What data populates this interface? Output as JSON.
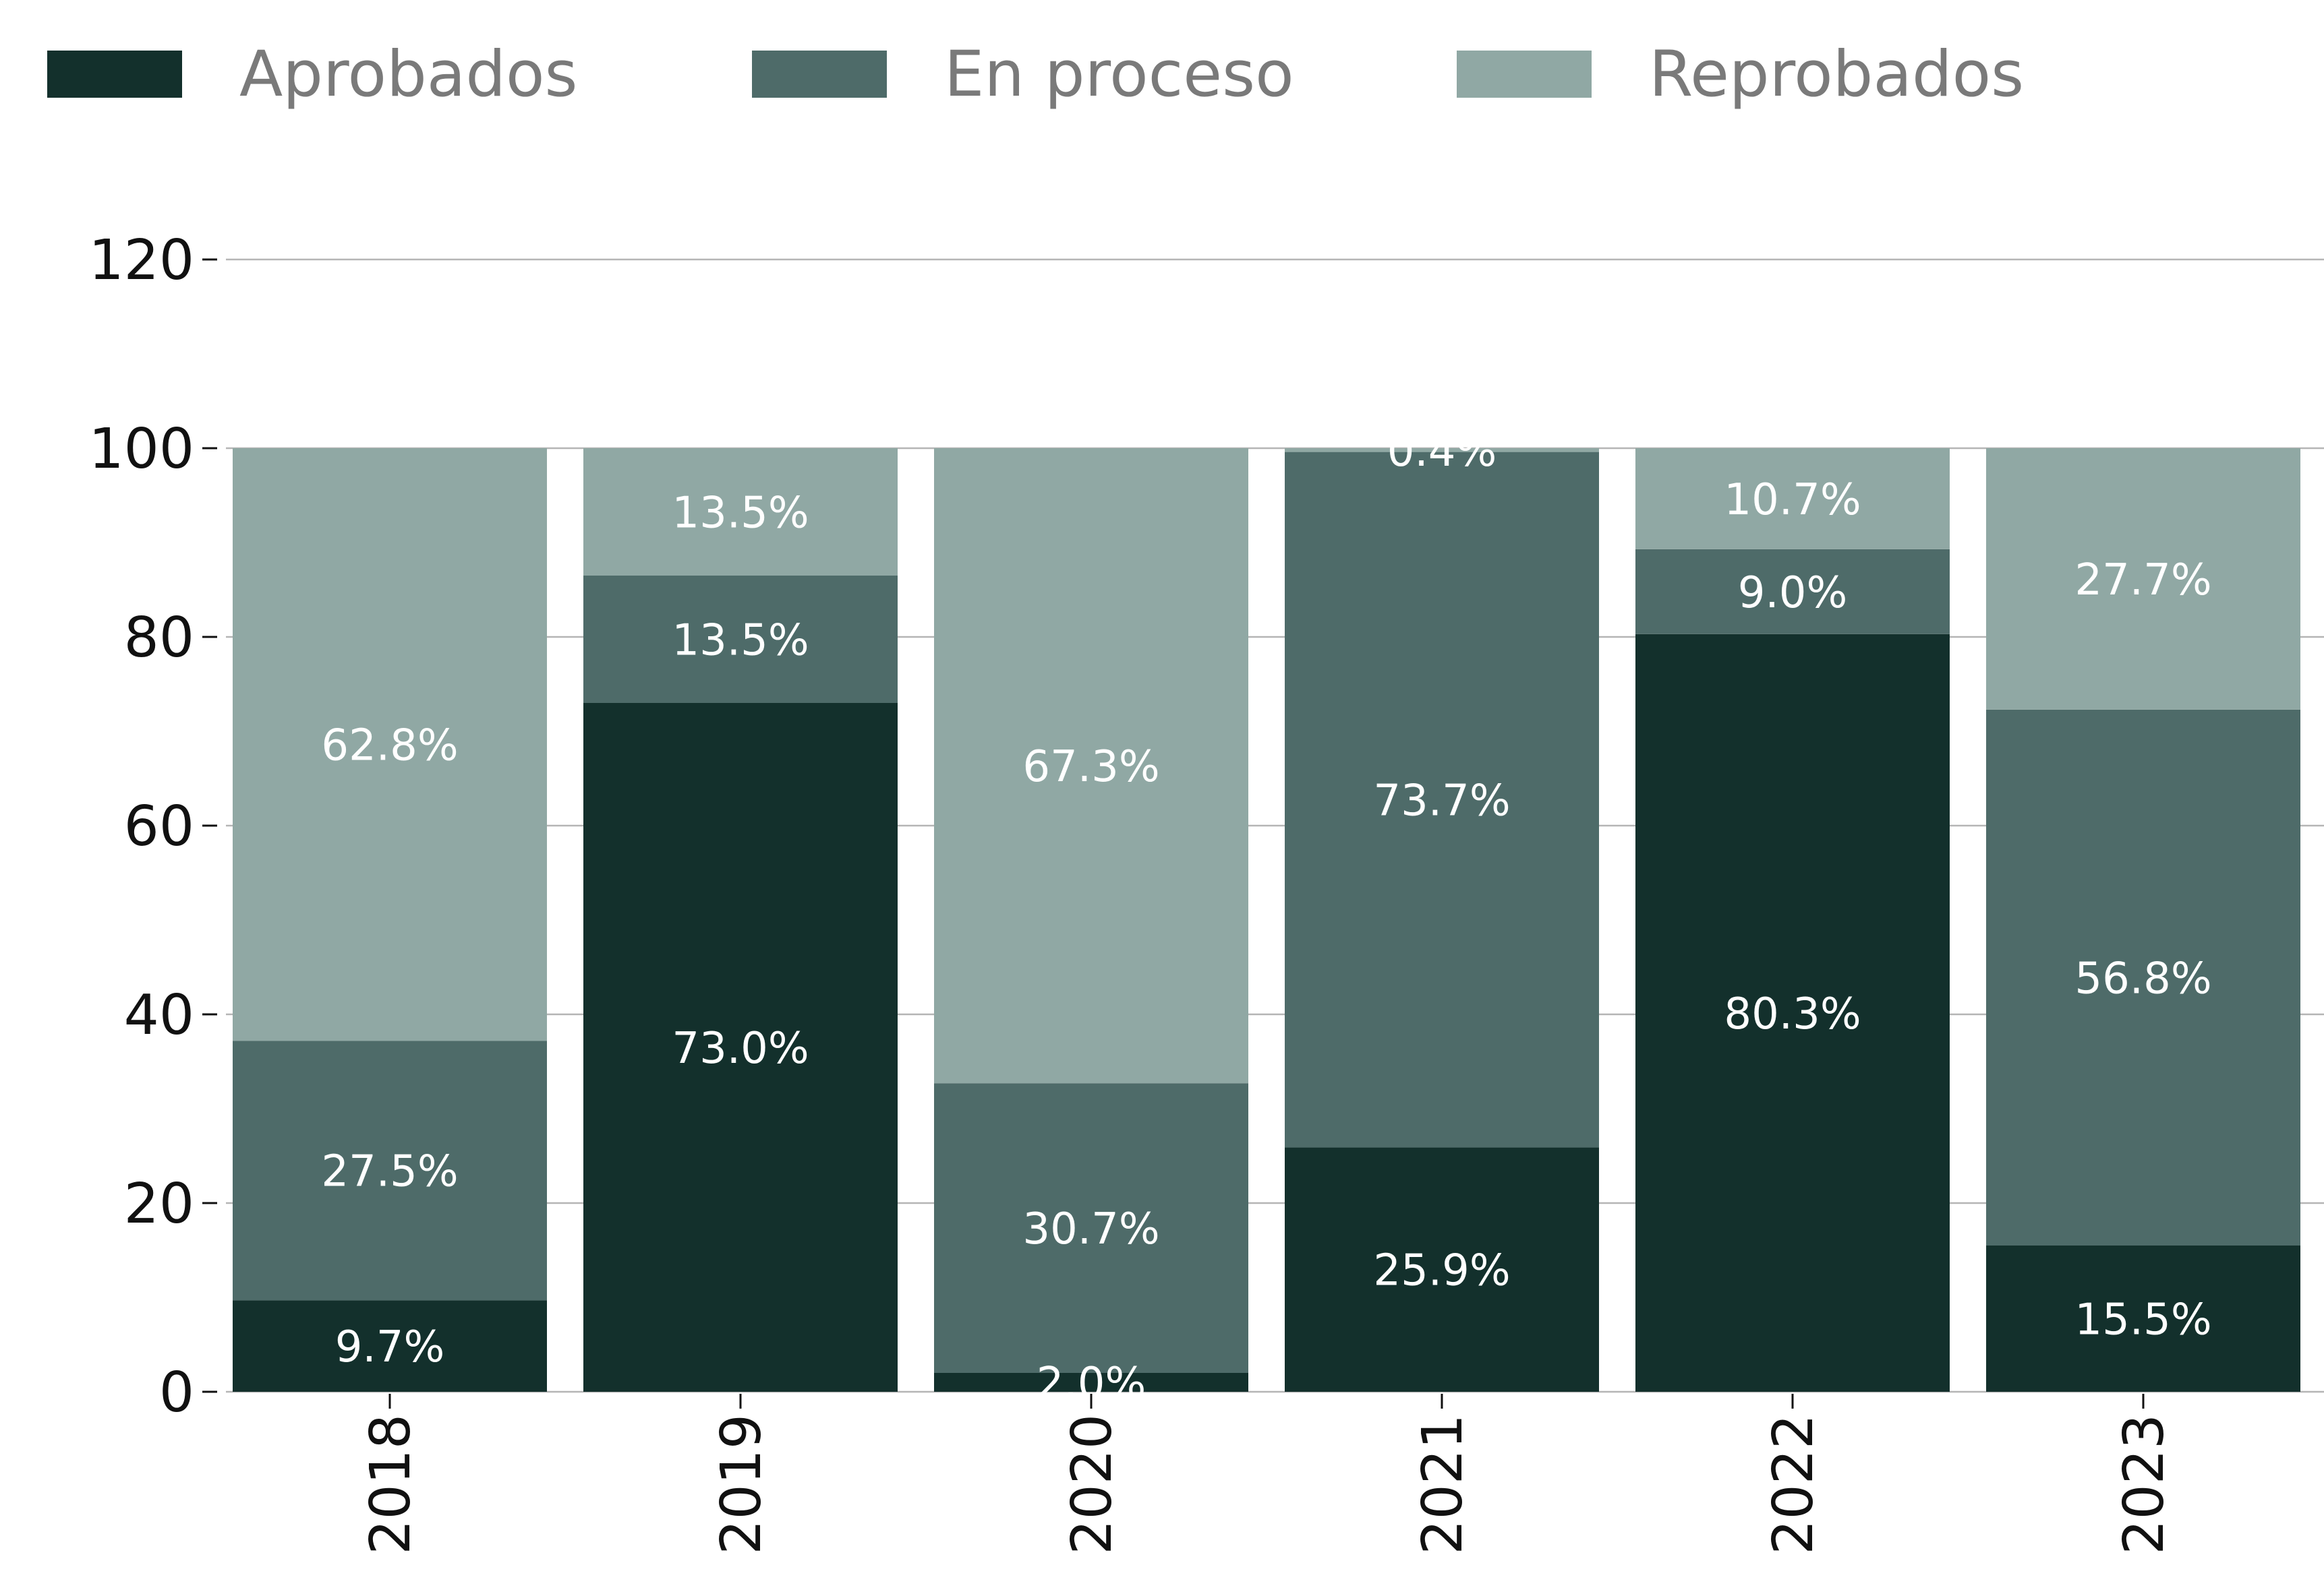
{
  "chart_data": {
    "type": "bar",
    "stacked": true,
    "categories": [
      "2018",
      "2019",
      "2020",
      "2021",
      "2022",
      "2023"
    ],
    "series": [
      {
        "name": "Aprobados",
        "color": "#13302c",
        "values": [
          9.7,
          73.0,
          2.0,
          25.9,
          80.3,
          15.5
        ],
        "labels": [
          "9.7%",
          "73.0%",
          "2.0%",
          "25.9%",
          "80.3%",
          "15.5%"
        ]
      },
      {
        "name": "En proceso",
        "color": "#4e6b69",
        "values": [
          27.5,
          13.5,
          30.7,
          73.7,
          9.0,
          56.8
        ],
        "labels": [
          "27.5%",
          "13.5%",
          "30.7%",
          "73.7%",
          "9.0%",
          "56.8%"
        ]
      },
      {
        "name": "Reprobados",
        "color": "#90a8a4",
        "values": [
          62.8,
          13.5,
          67.3,
          0.4,
          10.7,
          27.7
        ],
        "labels": [
          "62.8%",
          "13.5%",
          "67.3%",
          "0.4%",
          "10.7%",
          "27.7%"
        ]
      }
    ],
    "yticks": [
      "0",
      "20",
      "40",
      "60",
      "80",
      "100",
      "120"
    ],
    "ylim": [
      0,
      120
    ],
    "grid": true,
    "legend_position": "top-left",
    "title": "",
    "xlabel": "",
    "ylabel": ""
  }
}
